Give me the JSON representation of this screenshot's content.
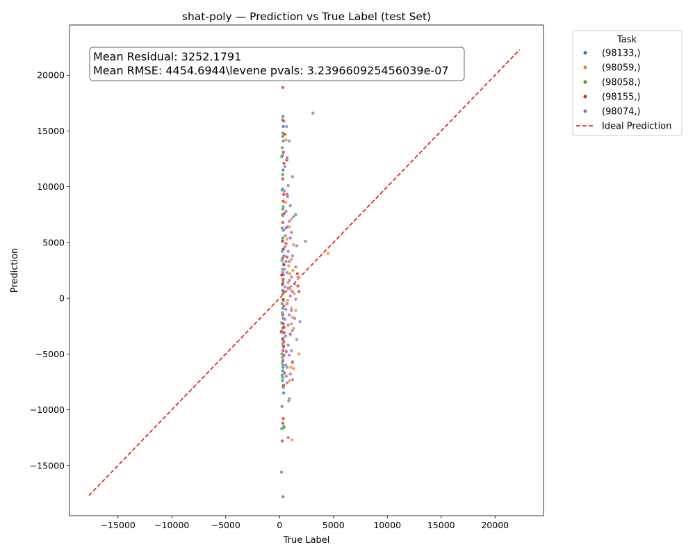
{
  "chart_data": {
    "type": "scatter",
    "title": "shat-poly — Prediction vs True Label (test Set)",
    "xlabel": "True Label",
    "ylabel": "Prediction",
    "xlim": [
      -19500,
      24500
    ],
    "ylim": [
      -19500,
      24500
    ],
    "xticks": [
      -15000,
      -10000,
      -5000,
      0,
      5000,
      10000,
      15000,
      20000
    ],
    "yticks": [
      -15000,
      -10000,
      -5000,
      0,
      5000,
      10000,
      15000,
      20000
    ],
    "tick_labels": [
      "−15000",
      "−10000",
      "−5000",
      "0",
      "5000",
      "10000",
      "15000",
      "20000"
    ],
    "grid": false,
    "annotation": {
      "line1": "Mean Residual: 3252.1791",
      "line2": "Mean RMSE: 4454.6944\\levene pvals: 3.239660925456039e-07"
    },
    "legend": {
      "title": "Task",
      "placement": "outside-right",
      "ideal_label": "Ideal Prediction"
    },
    "ideal_line": {
      "x": [
        -17700,
        22300
      ],
      "y": [
        -17700,
        22300
      ],
      "color": "#e3120b"
    },
    "series": [
      {
        "name": "(98133,)",
        "color": "#1f77b4",
        "points": [
          [
            320,
            16300
          ],
          [
            280,
            16000
          ],
          [
            350,
            15400
          ],
          [
            300,
            14800
          ],
          [
            360,
            14100
          ],
          [
            290,
            12800
          ],
          [
            330,
            11500
          ],
          [
            310,
            9800
          ],
          [
            340,
            8200
          ],
          [
            300,
            7400
          ],
          [
            360,
            6100
          ],
          [
            280,
            5200
          ],
          [
            320,
            4400
          ],
          [
            350,
            3100
          ],
          [
            300,
            2300
          ],
          [
            330,
            1500
          ],
          [
            290,
            700
          ],
          [
            360,
            -200
          ],
          [
            310,
            -900
          ],
          [
            340,
            -1800
          ],
          [
            300,
            -2700
          ],
          [
            320,
            -3600
          ],
          [
            360,
            -4400
          ],
          [
            280,
            -5300
          ],
          [
            330,
            -6200
          ],
          [
            300,
            -6500
          ],
          [
            350,
            -8000
          ],
          [
            380,
            -8500
          ],
          [
            320,
            -17800
          ],
          [
            400,
            -11600
          ],
          [
            290,
            -7100
          ],
          [
            420,
            3800
          ],
          [
            270,
            -3100
          ]
        ]
      },
      {
        "name": "(98059,)",
        "color": "#ff7f0e",
        "points": [
          [
            520,
            14700
          ],
          [
            600,
            14200
          ],
          [
            650,
            12400
          ],
          [
            1100,
            7100
          ],
          [
            900,
            6400
          ],
          [
            1300,
            4800
          ],
          [
            1100,
            3500
          ],
          [
            1250,
            2500
          ],
          [
            950,
            2200
          ],
          [
            1700,
            1900
          ],
          [
            800,
            1400
          ],
          [
            1000,
            800
          ],
          [
            1350,
            400
          ],
          [
            750,
            -200
          ],
          [
            1100,
            -900
          ],
          [
            1500,
            -1100
          ],
          [
            1200,
            -1700
          ],
          [
            1100,
            -2300
          ],
          [
            1300,
            -2700
          ],
          [
            1000,
            -3300
          ],
          [
            1800,
            -5000
          ],
          [
            1200,
            -5800
          ],
          [
            1050,
            -6200
          ],
          [
            1300,
            -6300
          ],
          [
            900,
            -7400
          ],
          [
            1150,
            -12700
          ],
          [
            4500,
            4000
          ],
          [
            550,
            8600
          ],
          [
            700,
            5300
          ],
          [
            620,
            -4700
          ],
          [
            480,
            -2600
          ],
          [
            850,
            2900
          ]
        ]
      },
      {
        "name": "(98058,)",
        "color": "#2ca02c",
        "points": [
          [
            300,
            14500
          ],
          [
            250,
            13500
          ],
          [
            200,
            12700
          ],
          [
            280,
            11100
          ],
          [
            230,
            9700
          ],
          [
            300,
            8000
          ],
          [
            260,
            7500
          ],
          [
            230,
            6300
          ],
          [
            300,
            5400
          ],
          [
            250,
            4200
          ],
          [
            220,
            3400
          ],
          [
            280,
            2600
          ],
          [
            200,
            2100
          ],
          [
            260,
            1200
          ],
          [
            300,
            400
          ],
          [
            230,
            -500
          ],
          [
            270,
            -1300
          ],
          [
            200,
            -2200
          ],
          [
            250,
            -3000
          ],
          [
            290,
            -4100
          ],
          [
            220,
            -5000
          ],
          [
            260,
            -5800
          ],
          [
            300,
            -6000
          ],
          [
            240,
            -6900
          ],
          [
            270,
            -7400
          ],
          [
            330,
            -7900
          ],
          [
            230,
            -9700
          ],
          [
            200,
            -11700
          ],
          [
            180,
            -15600
          ],
          [
            1500,
            7500
          ],
          [
            400,
            -11500
          ],
          [
            350,
            3000
          ]
        ]
      },
      {
        "name": "(98155,)",
        "color": "#d62728",
        "points": [
          [
            300,
            18900
          ],
          [
            380,
            15900
          ],
          [
            450,
            14700
          ],
          [
            350,
            13100
          ],
          [
            400,
            12100
          ],
          [
            300,
            10700
          ],
          [
            380,
            9300
          ],
          [
            330,
            8700
          ],
          [
            420,
            7600
          ],
          [
            300,
            6800
          ],
          [
            280,
            5100
          ],
          [
            360,
            4400
          ],
          [
            300,
            3600
          ],
          [
            410,
            3000
          ],
          [
            350,
            2100
          ],
          [
            290,
            1300
          ],
          [
            380,
            600
          ],
          [
            320,
            -100
          ],
          [
            400,
            -700
          ],
          [
            300,
            -1500
          ],
          [
            350,
            -2300
          ],
          [
            420,
            -3100
          ],
          [
            290,
            -3700
          ],
          [
            380,
            -4300
          ],
          [
            320,
            -4700
          ],
          [
            400,
            -5100
          ],
          [
            310,
            -5600
          ],
          [
            380,
            -7800
          ],
          [
            350,
            -10800
          ],
          [
            300,
            -11200
          ],
          [
            250,
            -12800
          ],
          [
            700,
            9300
          ],
          [
            680,
            12400
          ],
          [
            600,
            6300
          ],
          [
            1700,
            1100
          ],
          [
            1800,
            600
          ],
          [
            1650,
            2200
          ],
          [
            600,
            4900
          ],
          [
            700,
            3700
          ],
          [
            200,
            2100
          ],
          [
            150,
            -3000
          ],
          [
            450,
            -6700
          ],
          [
            400,
            -3900
          ],
          [
            370,
            -2600
          ],
          [
            330,
            1700
          ]
        ]
      },
      {
        "name": "(98074,)",
        "color": "#9467bd",
        "points": [
          [
            3100,
            16600
          ],
          [
            650,
            15400
          ],
          [
            900,
            14100
          ],
          [
            700,
            12600
          ],
          [
            1200,
            10900
          ],
          [
            800,
            10100
          ],
          [
            750,
            9100
          ],
          [
            1000,
            8300
          ],
          [
            1300,
            7300
          ],
          [
            900,
            6900
          ],
          [
            700,
            6400
          ],
          [
            1100,
            5900
          ],
          [
            2400,
            5100
          ],
          [
            1000,
            5400
          ],
          [
            1600,
            4700
          ],
          [
            800,
            4200
          ],
          [
            1200,
            3800
          ],
          [
            900,
            3300
          ],
          [
            1500,
            2800
          ],
          [
            700,
            2300
          ],
          [
            1100,
            1900
          ],
          [
            900,
            1600
          ],
          [
            1400,
            1300
          ],
          [
            800,
            900
          ],
          [
            1200,
            600
          ],
          [
            1000,
            200
          ],
          [
            1500,
            -100
          ],
          [
            700,
            -500
          ],
          [
            1100,
            -1100
          ],
          [
            900,
            -1500
          ],
          [
            1400,
            -1800
          ],
          [
            1900,
            -2100
          ],
          [
            800,
            -2400
          ],
          [
            1200,
            -2900
          ],
          [
            1000,
            -3200
          ],
          [
            1600,
            -3700
          ],
          [
            800,
            -4200
          ],
          [
            1100,
            -4700
          ],
          [
            900,
            -5100
          ],
          [
            1200,
            -5700
          ],
          [
            700,
            -6200
          ],
          [
            1000,
            -6800
          ],
          [
            1200,
            -7300
          ],
          [
            900,
            -9000
          ],
          [
            850,
            -9200
          ],
          [
            800,
            -12500
          ],
          [
            500,
            11800
          ],
          [
            450,
            9600
          ],
          [
            600,
            7800
          ],
          [
            550,
            5600
          ],
          [
            500,
            4600
          ],
          [
            600,
            3300
          ],
          [
            520,
            1000
          ],
          [
            580,
            -1000
          ],
          [
            560,
            -3400
          ],
          [
            620,
            -4800
          ],
          [
            580,
            -6000
          ],
          [
            620,
            -7000
          ],
          [
            700,
            -7600
          ],
          [
            480,
            -1900
          ],
          [
            440,
            2600
          ]
        ]
      }
    ]
  }
}
